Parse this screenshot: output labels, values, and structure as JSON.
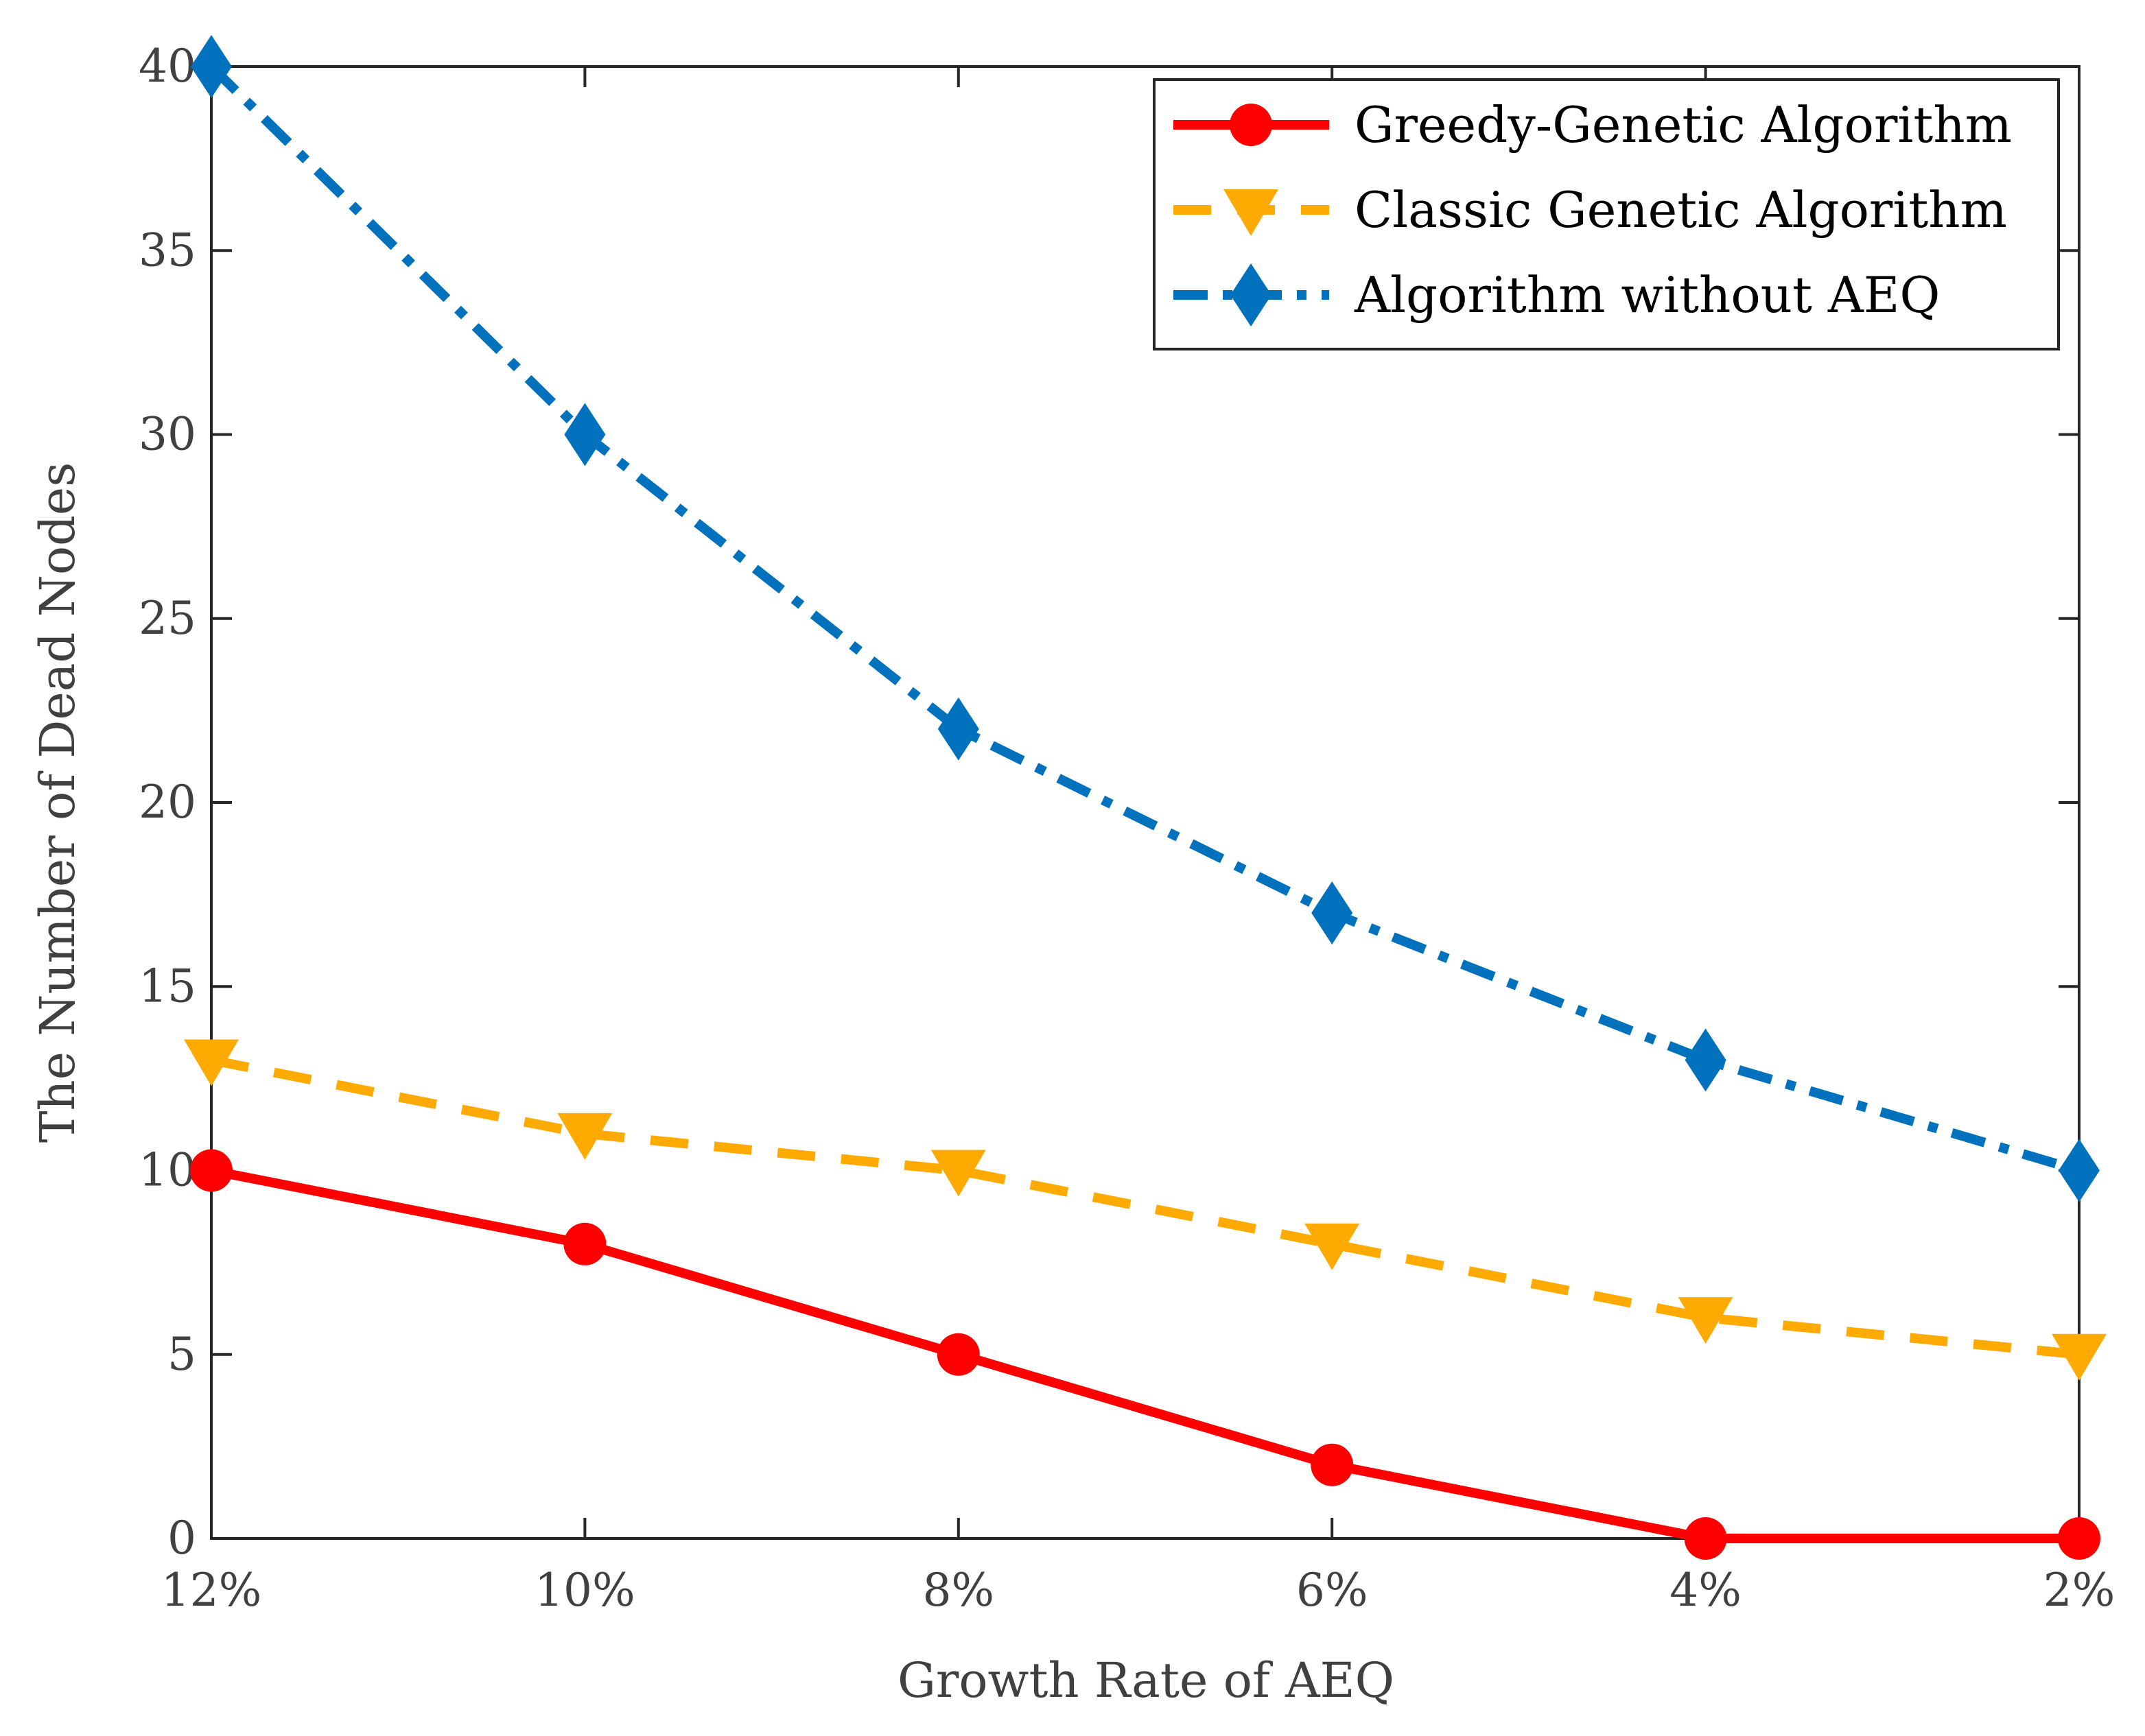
{
  "chart_data": {
    "type": "line",
    "title": "",
    "xlabel": "Growth Rate of AEQ",
    "ylabel": "The Number of Dead Nodes",
    "categories": [
      "12%",
      "10%",
      "8%",
      "6%",
      "4%",
      "2%"
    ],
    "ylim": [
      0,
      40
    ],
    "yticks": [
      "0",
      "5",
      "10",
      "15",
      "20",
      "25",
      "30",
      "35",
      "40"
    ],
    "grid": false,
    "legend_position": "top-right",
    "series": [
      {
        "name": "Greedy-Genetic Algorithm",
        "values": [
          10,
          8,
          5,
          2,
          0,
          0
        ],
        "color": "#ff0000",
        "line_style": "solid",
        "marker": "circle"
      },
      {
        "name": "Classic Genetic Algorithm",
        "values": [
          13,
          11,
          10,
          8,
          6,
          5
        ],
        "color": "#ffaa00",
        "line_style": "dashed",
        "marker": "triangle-down"
      },
      {
        "name": "Algorithm without AEQ",
        "values": [
          40,
          30,
          22,
          17,
          13,
          10
        ],
        "color": "#0072bd",
        "line_style": "dash-dot",
        "marker": "diamond"
      }
    ]
  }
}
